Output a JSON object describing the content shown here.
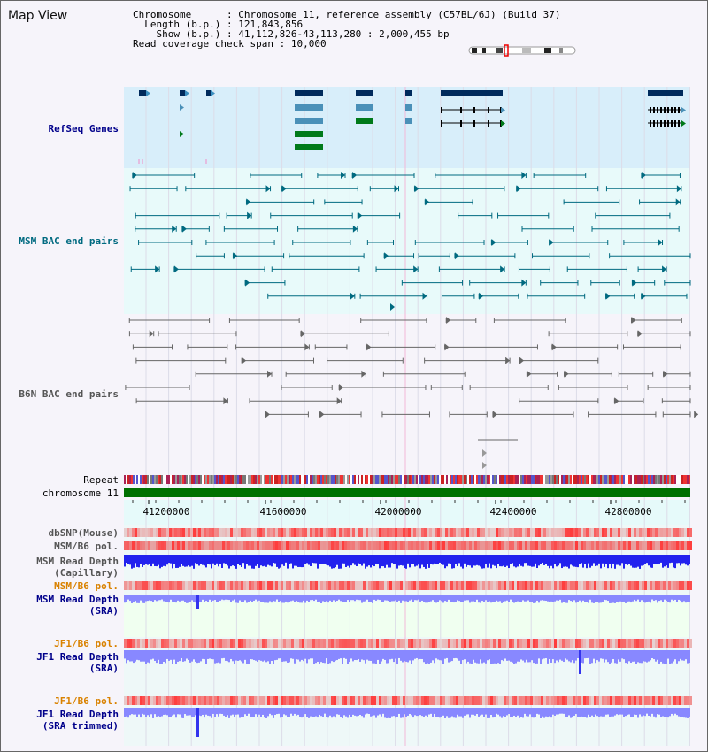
{
  "view_title": "Map View",
  "info": {
    "chromosome_label": "Chromosome",
    "chromosome_value": "Chromosome 11, reference assembly (C57BL/6J) (Build 37)",
    "length_label": "Length (b.p.)",
    "length_value": "121,843,856",
    "show_label": "Show (b.p.)",
    "show_value": "41,112,826-43,113,280 : 2,000,455 bp",
    "coverage_label": "Read coverage check span",
    "coverage_value": "10,000"
  },
  "tracks": {
    "refseq": "RefSeq Genes",
    "msm_bac": "MSM BAC end pairs",
    "b6n_bac": "B6N BAC end pairs",
    "repeat": "Repeat",
    "chromosome": "chromosome 11",
    "dbsnp": "dbSNP(Mouse)",
    "msm_b6_pol_1": "MSM/B6 pol.",
    "msm_depth_cap_1": "MSM Read Depth",
    "msm_depth_cap_2": "(Capillary)",
    "msm_b6_pol_2": "MSM/B6 pol.",
    "msm_depth_sra_1": "MSM Read Depth",
    "msm_depth_sra_2": "(SRA)",
    "jf1_b6_pol_1": "JF1/B6 pol.",
    "jf1_depth_1": "JF1 Read Depth",
    "jf1_depth_2": "(SRA)",
    "jf1_b6_pol_2": "JF1/B6 pol.",
    "jf1_depth_trim_1": "JF1 Read Depth",
    "jf1_depth_trim_2": "(SRA trimmed)"
  },
  "axis": {
    "ticks": [
      "41200000",
      "41600000",
      "42000000",
      "42400000",
      "42800000"
    ]
  },
  "colors": {
    "refseq_bg": "#d8eefa",
    "bac_bg": "#e8fafa",
    "gene_navy": "#002a5c",
    "gene_teal": "#4a90b8",
    "gene_green": "#007a1a",
    "bac_teal": "#006a80",
    "bac_grey": "#666666",
    "chromosome": "#007000",
    "snp_red": "#ee3333",
    "depth_blue": "#2222ee",
    "depth_light": "#8888ff"
  }
}
